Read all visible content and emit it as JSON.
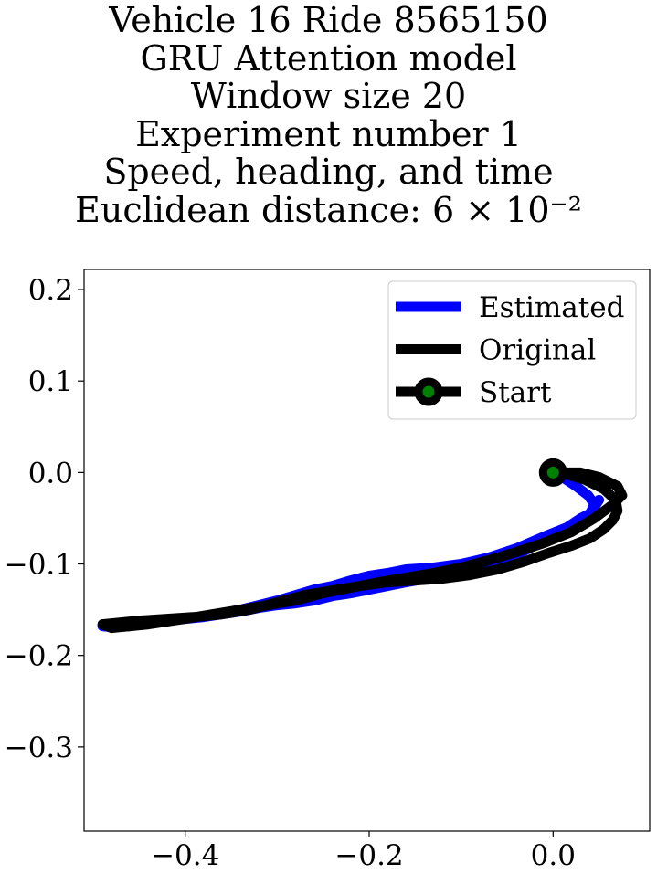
{
  "chart_data": {
    "type": "line",
    "title_lines": [
      "Vehicle 16 Ride 8565150",
      "GRU Attention model",
      "Window size 20",
      "Experiment number 1",
      "Speed, heading, and time",
      "Euclidean distance: 6 × 10⁻²"
    ],
    "xlabel": "",
    "ylabel": "",
    "xlim": [
      -0.51,
      0.105
    ],
    "ylim": [
      -0.392,
      0.222
    ],
    "xticks": [
      -0.4,
      -0.2,
      0.0
    ],
    "xtick_labels": [
      "−0.4",
      "−0.2",
      "0.0"
    ],
    "yticks": [
      0.2,
      0.1,
      0.0,
      -0.1,
      -0.2,
      -0.3
    ],
    "ytick_labels": [
      "0.2",
      "0.1",
      "0.0",
      "−0.1",
      "−0.2",
      "−0.3"
    ],
    "grid": false,
    "legend_position": "upper-right",
    "series": [
      {
        "name": "Estimated",
        "color": "#0000ff",
        "x": [
          0.0,
          0.01,
          0.025,
          0.038,
          0.045,
          0.04,
          0.03,
          0.015,
          -0.01,
          -0.04,
          -0.07,
          -0.1,
          -0.13,
          -0.16,
          -0.18,
          -0.2,
          -0.22,
          -0.24,
          -0.26,
          -0.28,
          -0.3,
          -0.32,
          -0.34,
          -0.36,
          -0.38,
          -0.4,
          -0.42,
          -0.44,
          -0.46,
          -0.48,
          -0.49,
          -0.48,
          -0.46,
          -0.44,
          -0.42,
          -0.4,
          -0.38,
          -0.36,
          -0.34,
          -0.32,
          -0.3,
          -0.28,
          -0.26,
          -0.24,
          -0.22,
          -0.19,
          -0.16,
          -0.13,
          -0.1,
          -0.07,
          -0.04,
          -0.01,
          0.02,
          0.04,
          0.05
        ],
        "y": [
          0.0,
          -0.005,
          -0.015,
          -0.025,
          -0.035,
          -0.045,
          -0.05,
          -0.06,
          -0.07,
          -0.083,
          -0.093,
          -0.1,
          -0.104,
          -0.106,
          -0.11,
          -0.113,
          -0.118,
          -0.124,
          -0.128,
          -0.134,
          -0.14,
          -0.145,
          -0.15,
          -0.155,
          -0.158,
          -0.16,
          -0.162,
          -0.164,
          -0.165,
          -0.166,
          -0.168,
          -0.169,
          -0.168,
          -0.165,
          -0.162,
          -0.16,
          -0.158,
          -0.155,
          -0.152,
          -0.148,
          -0.145,
          -0.143,
          -0.14,
          -0.135,
          -0.132,
          -0.126,
          -0.12,
          -0.115,
          -0.11,
          -0.1,
          -0.09,
          -0.075,
          -0.06,
          -0.045,
          -0.03
        ]
      },
      {
        "name": "Original",
        "color": "#000000",
        "x": [
          0.0,
          0.015,
          0.035,
          0.055,
          0.068,
          0.07,
          0.065,
          0.055,
          0.04,
          0.02,
          -0.005,
          -0.03,
          -0.06,
          -0.09,
          -0.12,
          -0.15,
          -0.18,
          -0.21,
          -0.24,
          -0.27,
          -0.3,
          -0.33,
          -0.36,
          -0.39,
          -0.42,
          -0.45,
          -0.47,
          -0.49,
          -0.48,
          -0.46,
          -0.44,
          -0.42,
          -0.4,
          -0.37,
          -0.34,
          -0.31,
          -0.28,
          -0.25,
          -0.22,
          -0.19,
          -0.16,
          -0.13,
          -0.1,
          -0.07,
          -0.04,
          -0.01,
          0.02,
          0.045,
          0.065,
          0.075,
          0.07,
          0.05,
          0.03,
          0.01
        ],
        "y": [
          0.0,
          -0.002,
          -0.008,
          -0.018,
          -0.03,
          -0.042,
          -0.052,
          -0.062,
          -0.072,
          -0.08,
          -0.088,
          -0.097,
          -0.106,
          -0.112,
          -0.116,
          -0.118,
          -0.12,
          -0.124,
          -0.129,
          -0.134,
          -0.142,
          -0.15,
          -0.155,
          -0.158,
          -0.16,
          -0.162,
          -0.164,
          -0.166,
          -0.17,
          -0.168,
          -0.166,
          -0.163,
          -0.16,
          -0.155,
          -0.15,
          -0.145,
          -0.14,
          -0.132,
          -0.126,
          -0.12,
          -0.115,
          -0.11,
          -0.104,
          -0.096,
          -0.087,
          -0.077,
          -0.065,
          -0.05,
          -0.035,
          -0.025,
          -0.015,
          -0.005,
          0.0,
          0.0
        ]
      }
    ],
    "start_marker": {
      "name": "Start",
      "x": 0.0,
      "y": 0.0,
      "fill": "#008000",
      "edge": "#000000"
    }
  }
}
